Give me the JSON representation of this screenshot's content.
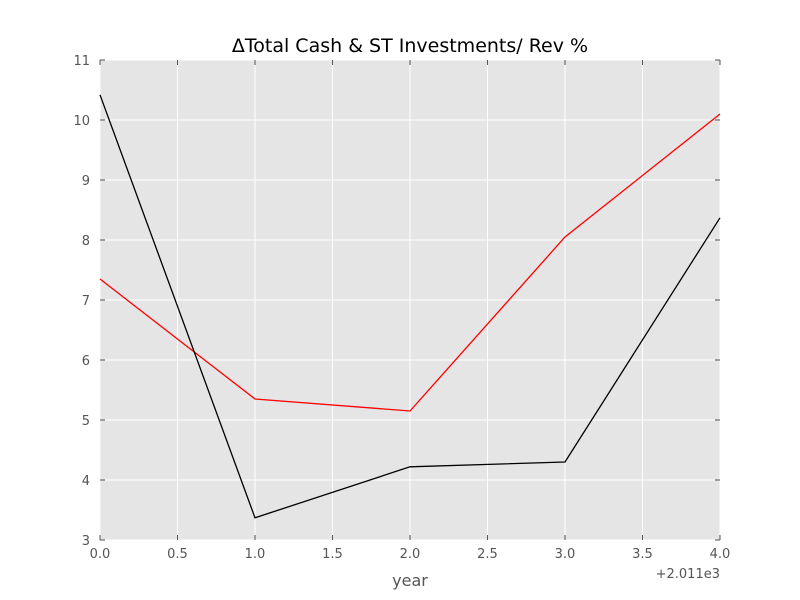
{
  "chart_data": {
    "type": "line",
    "title": "ΔTotal Cash & ST Investments/ Rev %",
    "xlabel": "year",
    "ylabel": "",
    "x_offset_label": "+2.011e3",
    "xlim": [
      0,
      4
    ],
    "ylim": [
      3,
      11
    ],
    "xticks": [
      0,
      0.5,
      1,
      1.5,
      2,
      2.5,
      3,
      3.5,
      4
    ],
    "xtick_labels": [
      "0.0",
      "0.5",
      "1.0",
      "1.5",
      "2.0",
      "2.5",
      "3.0",
      "3.5",
      "4.0"
    ],
    "yticks": [
      3,
      4,
      5,
      6,
      7,
      8,
      9,
      10,
      11
    ],
    "ytick_labels": [
      "3",
      "4",
      "5",
      "6",
      "7",
      "8",
      "9",
      "10",
      "11"
    ],
    "grid": true,
    "x": [
      0,
      1,
      2,
      3,
      4
    ],
    "series": [
      {
        "color": "#ff0000",
        "values": [
          7.35,
          5.35,
          5.15,
          8.05,
          10.1
        ]
      },
      {
        "color": "#000000",
        "values": [
          10.42,
          3.37,
          4.22,
          4.3,
          8.37
        ]
      }
    ]
  }
}
